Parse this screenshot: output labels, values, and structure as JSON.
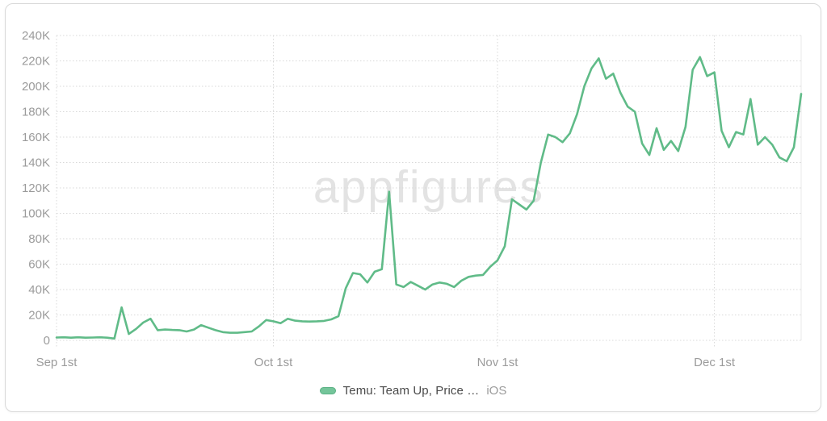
{
  "watermark": "appfigures",
  "legend": {
    "series_label": "Temu: Team Up, Price …",
    "platform": "iOS",
    "swatch_color": "#74c59a"
  },
  "colors": {
    "line": "#60bb88",
    "grid": "#d8d8d8",
    "axis_text": "#9b9b9b",
    "watermark_text": "#e3e3e3",
    "plot_right_border": "#e9e9e9"
  },
  "chart_data": {
    "type": "line",
    "title": "",
    "xlabel": "",
    "ylabel": "",
    "x_range": [
      "Sep 1",
      "Dec 13"
    ],
    "x_tick_labels": [
      "Sep 1st",
      "Oct 1st",
      "Nov 1st",
      "Dec 1st"
    ],
    "x_tick_day_indices": [
      0,
      30,
      61,
      91
    ],
    "y_tick_labels": [
      "0",
      "20K",
      "40K",
      "60K",
      "80K",
      "100K",
      "120K",
      "140K",
      "160K",
      "180K",
      "200K",
      "220K",
      "240K"
    ],
    "ylim_thousands": [
      0,
      240
    ],
    "grid": "dotted",
    "legend_position": "bottom",
    "series": [
      {
        "name": "Temu: Team Up, Price …",
        "platform": "iOS",
        "color": "#60bb88",
        "cadence": "daily",
        "values_thousands": [
          2.2,
          2.4,
          2.1,
          2.4,
          2.1,
          2.2,
          2.4,
          2.1,
          1.4,
          26,
          5,
          9,
          14,
          17,
          8,
          8.5,
          8.2,
          8,
          7,
          8.5,
          12,
          10,
          8,
          6.5,
          6,
          6,
          6.5,
          7,
          11,
          16,
          15,
          13.5,
          17,
          15.5,
          15,
          14.8,
          15,
          15.3,
          16.5,
          19,
          41,
          53,
          52,
          45.5,
          54,
          56,
          117,
          44,
          42,
          46,
          43,
          40,
          44,
          45.5,
          44.5,
          42,
          47,
          50,
          51,
          51.5,
          58,
          63,
          74,
          111,
          107,
          103,
          110,
          140,
          162,
          160,
          156,
          163,
          178,
          200,
          214,
          222,
          206,
          210,
          195,
          184,
          180,
          155,
          146,
          167,
          150,
          157,
          149,
          168,
          213,
          223,
          208,
          211,
          165,
          152,
          164,
          162,
          190,
          154,
          160,
          154,
          144,
          141,
          152,
          194
        ]
      }
    ]
  }
}
